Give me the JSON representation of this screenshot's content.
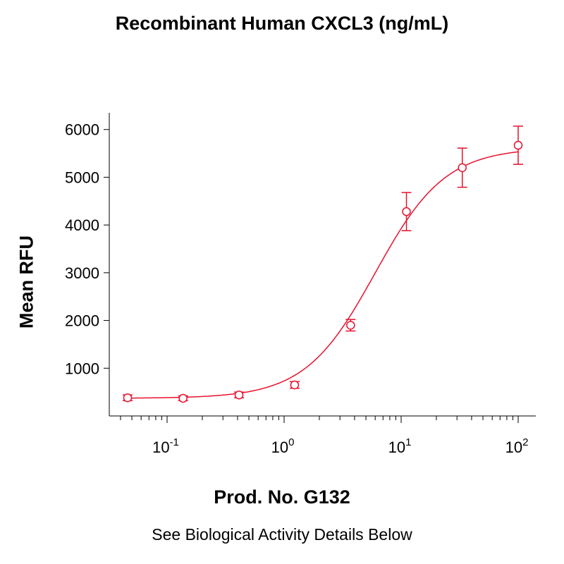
{
  "header": {
    "title": "Recombinant Human CXCL3 (ng/mL)"
  },
  "footer": {
    "product": "Prod. No. G132",
    "details": "See Biological Activity Details Below"
  },
  "chart_data": {
    "type": "scatter",
    "title": "Recombinant Human CXCL3 (ng/mL)",
    "xlabel": "",
    "ylabel": "Mean RFU",
    "xscale": "log",
    "xlim": [
      0.035,
      150
    ],
    "ylim": [
      0,
      6350
    ],
    "xticks": [
      {
        "value": 0.1,
        "base": "10",
        "exp": "-1"
      },
      {
        "value": 1,
        "base": "10",
        "exp": "0"
      },
      {
        "value": 10,
        "base": "10",
        "exp": "1"
      },
      {
        "value": 100,
        "base": "10",
        "exp": "2"
      }
    ],
    "yticks": [
      1000,
      2000,
      3000,
      4000,
      5000,
      6000
    ],
    "grid": false,
    "color": "#e8112d",
    "series": [
      {
        "x": [
          0.046,
          0.137,
          0.412,
          1.23,
          3.7,
          11.1,
          33.3,
          100
        ],
        "y": [
          380,
          370,
          440,
          650,
          1900,
          4280,
          5200,
          5670
        ],
        "err": [
          60,
          50,
          60,
          70,
          120,
          400,
          410,
          400
        ]
      }
    ],
    "fit": {
      "model": "4PL",
      "bottom": 370,
      "top": 5620,
      "ec50": 6.0,
      "hill": 1.45
    }
  }
}
